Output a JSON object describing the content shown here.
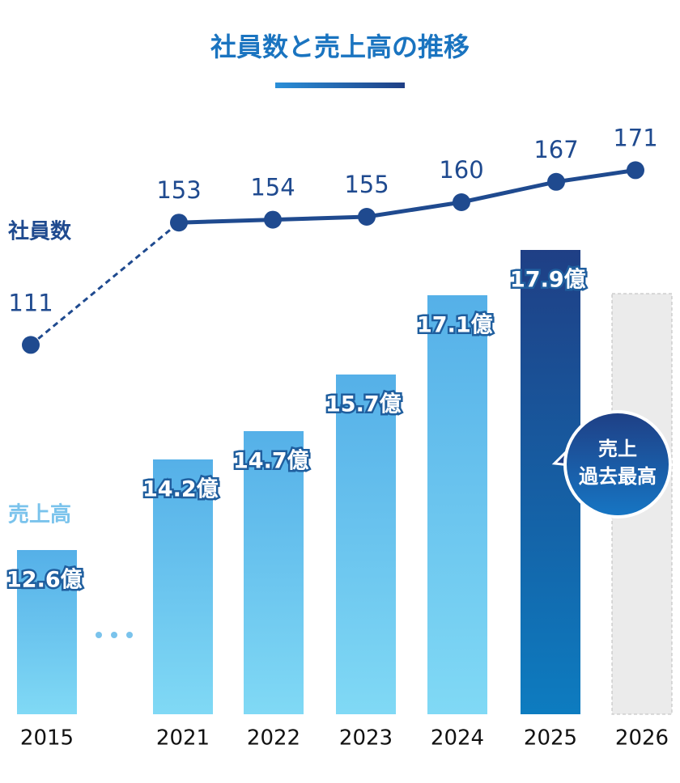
{
  "chart_data": {
    "type": "bar-line",
    "title": "社員数と売上高の推移",
    "categories": [
      "2015",
      "2021",
      "2022",
      "2023",
      "2024",
      "2025",
      "2026"
    ],
    "series": [
      {
        "name": "売上高",
        "type": "bar",
        "color": "#7ac3ec",
        "colors": [
          "#55b0e8",
          "#55b0e8",
          "#55b0e8",
          "#55b0e8",
          "#55b0e8",
          "#1f3f85",
          null
        ],
        "values": [
          12.6,
          14.2,
          14.7,
          15.7,
          17.1,
          17.9,
          null
        ],
        "value_labels": [
          "12.6億",
          "14.2億",
          "14.7億",
          "15.7億",
          "17.1億",
          "17.9億",
          null
        ]
      },
      {
        "name": "社員数",
        "type": "line",
        "axis": "y2",
        "color": "#1f4a8f",
        "values": [
          111,
          153,
          154,
          155,
          160,
          167,
          171
        ]
      }
    ],
    "ylim": [
      9.7,
      18.7
    ],
    "y2lim": [
      100,
      200
    ],
    "annotation": [
      "売上",
      "過去最高"
    ]
  }
}
